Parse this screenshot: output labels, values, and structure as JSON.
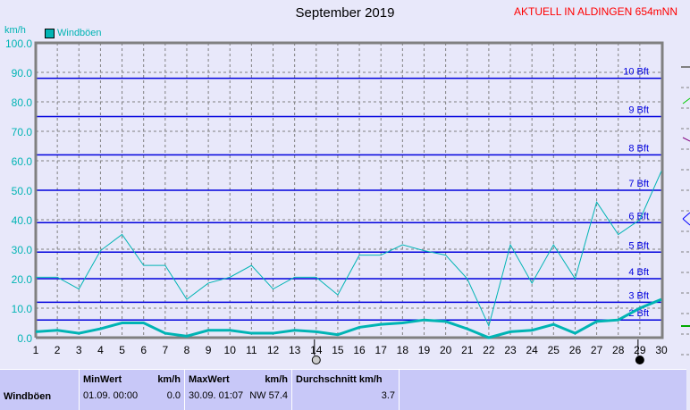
{
  "header": {
    "title": "September 2019",
    "station": "AKTUELL IN ALDINGEN 654mNN"
  },
  "chart_data": {
    "type": "line",
    "title": "September 2019",
    "ylabel": "km/h",
    "ylim": [
      0,
      100
    ],
    "yticks": [
      "0.0",
      "10.0",
      "20.0",
      "30.0",
      "40.0",
      "50.0",
      "60.0",
      "70.0",
      "80.0",
      "90.0",
      "100.0"
    ],
    "x": [
      1,
      2,
      3,
      4,
      5,
      6,
      7,
      8,
      9,
      10,
      11,
      12,
      13,
      14,
      15,
      16,
      17,
      18,
      19,
      20,
      21,
      22,
      23,
      24,
      25,
      26,
      27,
      28,
      29,
      30
    ],
    "legend": [
      "Windböen"
    ],
    "series": [
      {
        "name": "Windböen max",
        "color": "#00b4b4",
        "values": [
          20.5,
          20.5,
          16.5,
          29.5,
          35,
          24.5,
          24.5,
          13,
          18.5,
          20.5,
          24.5,
          16.5,
          20.5,
          20.5,
          14.5,
          28,
          28,
          31.5,
          29.5,
          28,
          20,
          4,
          31.5,
          18.5,
          31.5,
          20,
          46,
          35,
          40,
          56.5
        ]
      },
      {
        "name": "Windböen mittel",
        "color": "#00b4b4",
        "values": [
          2,
          2.5,
          1.5,
          3,
          5,
          5,
          1.5,
          0.5,
          2.5,
          2.5,
          1.5,
          1.5,
          2.5,
          2,
          1,
          3.5,
          4.5,
          5,
          6,
          5.5,
          3,
          0,
          2,
          2.5,
          4.5,
          1.5,
          5.5,
          6,
          10,
          13
        ]
      }
    ],
    "beaufort": [
      {
        "label": "2 Bft",
        "value": 6
      },
      {
        "label": "3 Bft",
        "value": 12
      },
      {
        "label": "4 Bft",
        "value": 20
      },
      {
        "label": "5 Bft",
        "value": 29
      },
      {
        "label": "6 Bft",
        "value": 39
      },
      {
        "label": "7 Bft",
        "value": 50
      },
      {
        "label": "8 Bft",
        "value": 62
      },
      {
        "label": "9 Bft",
        "value": 75
      },
      {
        "label": "10 Bft",
        "value": 88
      }
    ],
    "markers": [
      {
        "day": 14,
        "type": "moon-full"
      },
      {
        "day": 29,
        "type": "moon-new"
      }
    ]
  },
  "table": {
    "row_label": "Windböen",
    "min_header": "MinWert",
    "min_unit": "km/h",
    "min_time": "01.09.  00:00",
    "min_val": "0.0",
    "max_header": "MaxWert",
    "max_unit": "km/h",
    "max_time": "30.09.  01:07",
    "max_val": "NW 57.4",
    "avg_header": "Durchschnitt km/h",
    "avg_val": "3.7"
  }
}
